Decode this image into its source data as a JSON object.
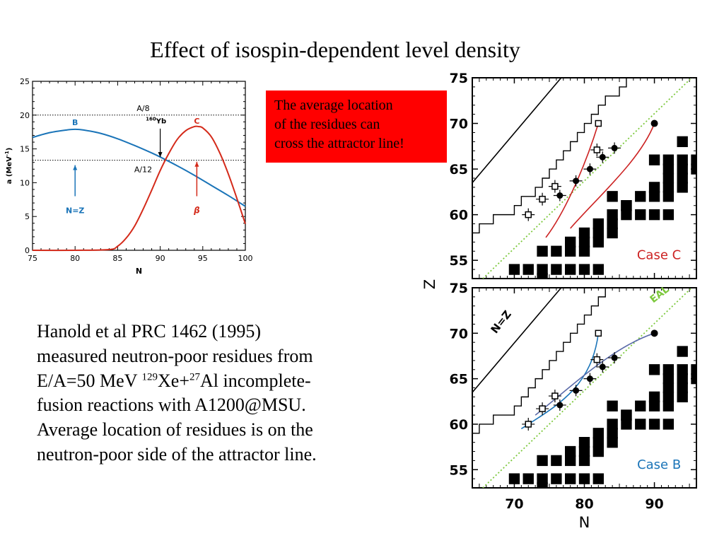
{
  "slide": {
    "title": "Effect of isospin-dependent level density",
    "callout": [
      "The average location",
      "of the  residues can",
      "cross the attractor line!"
    ],
    "paragraph": {
      "line1": "Hanold et al PRC 1462 (1995)",
      "line2": "measured neutron-poor residues from",
      "line3_pre": "E/A=50 MeV ",
      "line3_sup1": "129",
      "line3_mid": "Xe+",
      "line3_sup2": "27",
      "line3_post": "Al incomplete-",
      "line4": "fusion reactions with A1200@MSU.",
      "line5": "Average location of residues is on the",
      "line6": "neutron-poor side of the attractor line."
    }
  },
  "colors": {
    "blue": "#1a74b8",
    "red": "#d42a1a",
    "green_dotted": "#7cc83c",
    "callout_bg": "#ff0000",
    "case_c": "#cc2222",
    "case_b": "#1a74b8",
    "slate_curve": "#5a6aa8"
  },
  "chart_data": [
    {
      "type": "line",
      "xlim": [
        75,
        100
      ],
      "ylim": [
        0,
        25
      ],
      "xticks": [
        "75",
        "80",
        "85",
        "90",
        "95",
        "100"
      ],
      "yticks": [
        "0",
        "5",
        "10",
        "15",
        "20",
        "25"
      ],
      "xlabel": "N",
      "ylabel": "a (MeV",
      "ylabel_sup": "-1",
      "ylabel_close": ")",
      "hlines": [
        {
          "y": 20,
          "label": "A/8"
        },
        {
          "y": 13.33,
          "label": "A/12"
        }
      ],
      "series": [
        {
          "name": "B",
          "color": "#1a74b8",
          "x": [
            75,
            77,
            79,
            80,
            81,
            83,
            85,
            87,
            89,
            90,
            92,
            94,
            96,
            98,
            100
          ],
          "y": [
            16.7,
            17.4,
            17.8,
            17.9,
            17.8,
            17.3,
            16.5,
            15.5,
            14.4,
            13.8,
            12.5,
            11.1,
            9.6,
            8.1,
            6.5
          ]
        },
        {
          "name": "C",
          "color": "#d42a1a",
          "x": [
            75,
            80,
            84,
            85,
            86,
            87,
            88,
            89,
            90,
            91,
            92,
            93,
            94,
            94.5,
            95,
            96,
            97,
            98,
            99,
            100
          ],
          "y": [
            0,
            0,
            0.1,
            0.6,
            1.8,
            3.6,
            6.1,
            8.9,
            11.8,
            14.3,
            16.4,
            17.7,
            18.3,
            18.3,
            18.1,
            16.8,
            14.4,
            11.3,
            7.7,
            3.9
          ]
        }
      ],
      "annotations": [
        {
          "text": "160",
          "sup": true
        },
        {
          "text": "Yb"
        },
        {
          "text": "N=Z"
        },
        {
          "text": "β"
        }
      ]
    },
    {
      "type": "scatter",
      "panel": "Case C",
      "xlim": [
        64,
        96
      ],
      "ylim": [
        53,
        75
      ],
      "xticks": [
        "70",
        "80",
        "90"
      ],
      "yticks": [
        "55",
        "60",
        "65",
        "70",
        "75"
      ],
      "xlabel": "N",
      "ylabel": "Z",
      "label": "Case C",
      "open_points": [
        [
          72,
          60
        ],
        [
          74,
          61.7
        ],
        [
          75.8,
          63.1
        ],
        [
          81.8,
          67.1
        ]
      ],
      "filled_points": [
        [
          76.5,
          62.1
        ],
        [
          78.8,
          63.7
        ],
        [
          80.8,
          65.0
        ],
        [
          82.6,
          66.3
        ],
        [
          84.3,
          67.3
        ]
      ],
      "endpoints": {
        "open": [
          82,
          70
        ],
        "filled": [
          90,
          70
        ]
      }
    },
    {
      "type": "scatter",
      "panel": "Case B",
      "xlim": [
        64,
        96
      ],
      "ylim": [
        53,
        75
      ],
      "xticks": [
        "70",
        "80",
        "90"
      ],
      "yticks": [
        "55",
        "60",
        "65",
        "70",
        "75"
      ],
      "xlabel": "N",
      "ylabel": "Z",
      "label": "Case B",
      "line_labels": [
        "N=Z",
        "EAL"
      ],
      "open_points": [
        [
          72,
          60
        ],
        [
          74,
          61.7
        ],
        [
          75.8,
          63.1
        ],
        [
          81.8,
          67.1
        ]
      ],
      "filled_points": [
        [
          76.5,
          62.1
        ],
        [
          78.8,
          63.7
        ],
        [
          80.8,
          65.0
        ],
        [
          82.6,
          66.3
        ],
        [
          84.3,
          67.3
        ]
      ],
      "endpoints": {
        "open": [
          82,
          70
        ],
        "filled": [
          90,
          70
        ]
      }
    }
  ]
}
